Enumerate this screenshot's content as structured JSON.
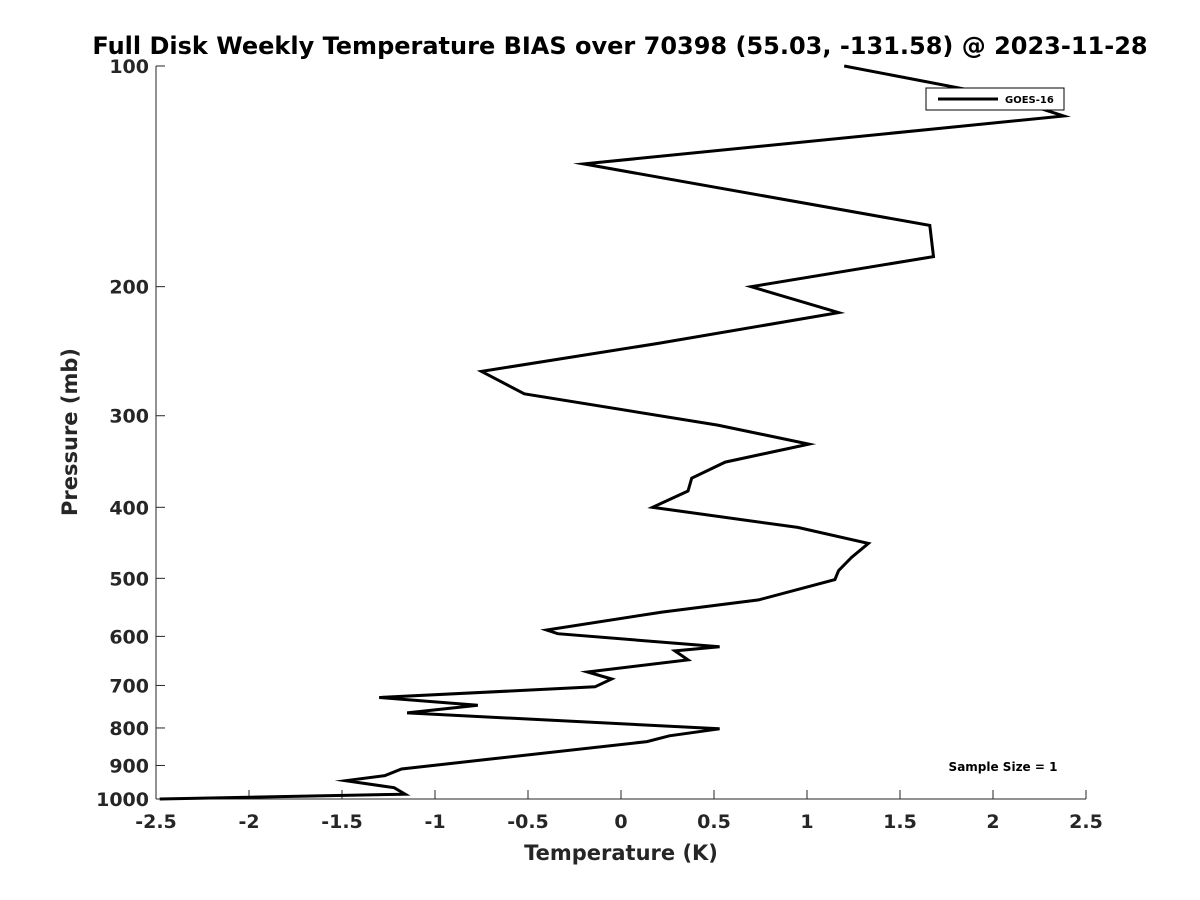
{
  "chart_data": {
    "type": "line",
    "title": "Full Disk Weekly Temperature BIAS over 70398 (55.03, -131.58) @ 2023-11-28",
    "xlabel": "Temperature (K)",
    "ylabel": "Pressure (mb)",
    "xlim": [
      -2.5,
      2.5
    ],
    "ylim": [
      1000,
      100
    ],
    "yscale": "log",
    "xticks": [
      -2.5,
      -2,
      -1.5,
      -1,
      -0.5,
      0,
      0.5,
      1,
      1.5,
      2,
      2.5
    ],
    "xtick_labels": [
      "-2.5",
      "-2",
      "-1.5",
      "-1",
      "-0.5",
      "0",
      "0.5",
      "1",
      "1.5",
      "2",
      "2.5"
    ],
    "yticks": [
      100,
      200,
      300,
      400,
      500,
      600,
      700,
      800,
      900,
      1000
    ],
    "ytick_labels": [
      "100",
      "200",
      "300",
      "400",
      "500",
      "600",
      "700",
      "800",
      "900",
      "1000"
    ],
    "grid": false,
    "legend_position": "top-right",
    "series": [
      {
        "name": "GOES-16",
        "color": "#000000",
        "x": [
          1.2,
          2.05,
          2.38,
          -0.2,
          1.66,
          1.68,
          0.7,
          1.17,
          0.2,
          -0.75,
          -0.52,
          0.52,
          1.01,
          0.56,
          0.38,
          0.36,
          0.17,
          0.95,
          1.33,
          1.24,
          1.17,
          1.15,
          0.74,
          0.22,
          -0.4,
          -0.34,
          0.53,
          0.29,
          0.36,
          -0.18,
          -0.05,
          -0.14,
          -1.3,
          -0.77,
          -1.15,
          0.53,
          0.26,
          0.14,
          -0.7,
          -1.18,
          -1.27,
          -1.48,
          -1.22,
          -1.16,
          -2.48
        ],
        "y": [
          100,
          110,
          117,
          136,
          165,
          182,
          200,
          217,
          239,
          261,
          280,
          309,
          328,
          347,
          365,
          380,
          400,
          426,
          448,
          468,
          488,
          502,
          535,
          556,
          588,
          595,
          620,
          628,
          646,
          671,
          686,
          703,
          727,
          745,
          763,
          802,
          820,
          835,
          882,
          910,
          929,
          944,
          965,
          985,
          1000
        ]
      }
    ],
    "annotations": [
      "Sample Size = 1"
    ]
  }
}
